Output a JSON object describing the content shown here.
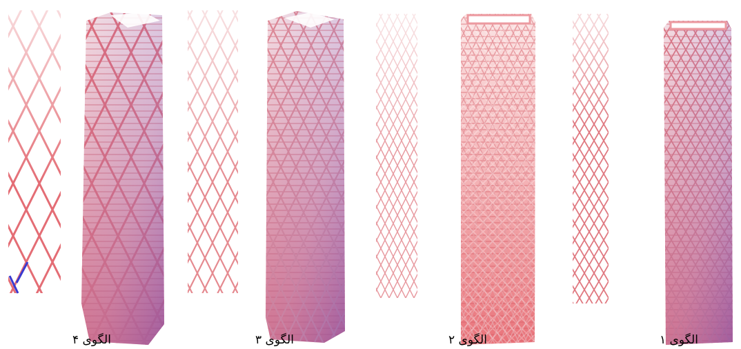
{
  "patterns": [
    {
      "label": "الگوی ۴"
    },
    {
      "label": "الگوی ۳"
    },
    {
      "label": "الگوی ۲"
    },
    {
      "label": "الگوی ۱"
    }
  ]
}
